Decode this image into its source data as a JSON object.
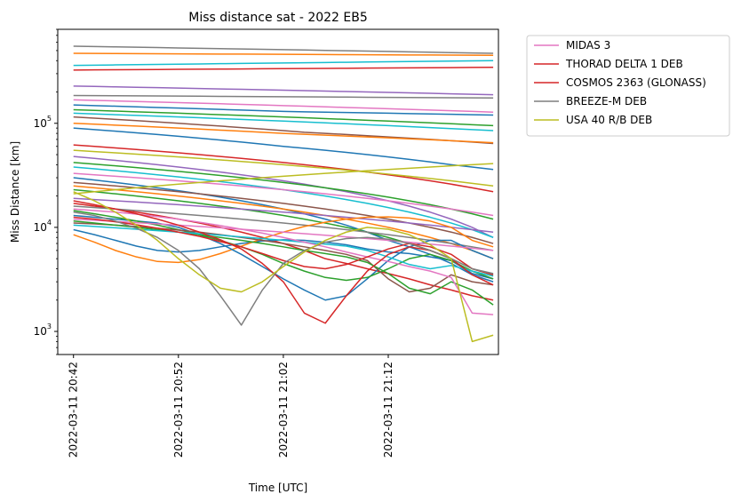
{
  "chart_data": {
    "type": "line",
    "title": "Miss distance sat - 2022 EB5",
    "xlabel": "Time [UTC]",
    "ylabel": "Miss Distance [km]",
    "yscale": "log",
    "ylim": [
      600,
      800000
    ],
    "xlim": [
      "2022-03-11 20:40:30",
      "2022-03-11 21:22:30"
    ],
    "x_ticks": [
      "2022-03-11 20:42",
      "2022-03-11 20:52",
      "2022-03-11 21:02",
      "2022-03-11 21:12"
    ],
    "y_ticks": [
      {
        "label_base": "10",
        "label_exp": "3",
        "value": 1000
      },
      {
        "label_base": "10",
        "label_exp": "4",
        "value": 10000
      },
      {
        "label_base": "10",
        "label_exp": "5",
        "value": 100000
      }
    ],
    "legend_position": "outside-upper-right",
    "x": [
      "20:42",
      "20:44",
      "20:46",
      "20:48",
      "20:50",
      "20:52",
      "20:54",
      "20:56",
      "20:58",
      "21:00",
      "21:02",
      "21:04",
      "21:06",
      "21:08",
      "21:10",
      "21:12",
      "21:14",
      "21:16",
      "21:18",
      "21:20",
      "21:22"
    ],
    "series": [
      {
        "name": "MIDAS 3",
        "color": "#e377c2",
        "values": [
          15000,
          14500,
          14000,
          13400,
          12700,
          12000,
          11200,
          10400,
          9600,
          8800,
          8000,
          7200,
          6500,
          5800,
          5200,
          4700,
          4200,
          3800,
          3300,
          1500,
          1450
        ]
      },
      {
        "name": "THORAD DELTA 1 DEB",
        "color": "#d62728",
        "values": [
          18000,
          16500,
          15000,
          13500,
          12000,
          10500,
          9000,
          7600,
          6200,
          4500,
          3000,
          1500,
          1200,
          2200,
          3800,
          5500,
          6500,
          6000,
          5000,
          3500,
          2800
        ]
      },
      {
        "name": "COSMOS 2363 (GLONASS)",
        "color": "#d62728",
        "values": [
          12500,
          12000,
          11300,
          10600,
          9800,
          9000,
          8200,
          7300,
          6500,
          5600,
          4800,
          4200,
          4000,
          4400,
          5200,
          6200,
          7000,
          6500,
          5500,
          4000,
          3500
        ]
      },
      {
        "name": "BREEZE-M DEB",
        "color": "#7f7f7f",
        "values": [
          14000,
          13000,
          11500,
          9800,
          8000,
          6000,
          4000,
          2200,
          1150,
          2500,
          4500,
          6000,
          7200,
          7800,
          8000,
          7700,
          7000,
          6000,
          5000,
          4000,
          3600
        ]
      },
      {
        "name": "USA 40 R/B DEB",
        "color": "#bcbd22",
        "values": [
          22000,
          18000,
          14000,
          10500,
          7500,
          5000,
          3500,
          2600,
          2400,
          3000,
          4200,
          5800,
          7500,
          9000,
          10000,
          9600,
          8500,
          6800,
          5000,
          800,
          920
        ]
      },
      {
        "name": "",
        "color": "#7f7f7f",
        "values": [
          550000,
          546000,
          542000,
          538000,
          534000,
          530000,
          526000,
          522000,
          518000,
          514000,
          510000,
          506000,
          502000,
          498000,
          494000,
          490000,
          486000,
          482000,
          478000,
          474000,
          470000
        ]
      },
      {
        "name": "",
        "color": "#ff7f0e",
        "values": [
          470000,
          469000,
          468000,
          467000,
          466000,
          465000,
          464000,
          463000,
          462000,
          461000,
          460000,
          459000,
          458000,
          457000,
          456000,
          455000,
          454000,
          453000,
          452000,
          451000,
          450000
        ]
      },
      {
        "name": "",
        "color": "#17becf",
        "values": [
          360000,
          362000,
          364000,
          366000,
          368000,
          370000,
          372000,
          374000,
          376000,
          378000,
          380000,
          382000,
          384000,
          386000,
          388000,
          390000,
          392000,
          394000,
          396000,
          398000,
          400000
        ]
      },
      {
        "name": "",
        "color": "#d62728",
        "values": [
          325000,
          326000,
          327000,
          328000,
          329000,
          330000,
          331000,
          332000,
          333000,
          334000,
          335000,
          336000,
          337000,
          338000,
          339000,
          340000,
          341000,
          342000,
          343000,
          344000,
          345000
        ]
      },
      {
        "name": "",
        "color": "#9467bd",
        "values": [
          228000,
          226000,
          224000,
          222000,
          220000,
          218000,
          216000,
          214000,
          212000,
          210000,
          208000,
          206000,
          204000,
          202000,
          200000,
          198000,
          196000,
          194000,
          192000,
          190000,
          188000
        ]
      },
      {
        "name": "",
        "color": "#7f7f7f",
        "values": [
          185000,
          184500,
          184000,
          183500,
          183000,
          182500,
          182000,
          181500,
          181000,
          180500,
          180000,
          179500,
          179000,
          178500,
          178000,
          177500,
          177000,
          176500,
          176000,
          175500,
          175000
        ]
      },
      {
        "name": "",
        "color": "#e377c2",
        "values": [
          168000,
          166000,
          164000,
          162000,
          160000,
          158000,
          156000,
          154000,
          152000,
          150000,
          148000,
          146000,
          144000,
          142000,
          140000,
          138000,
          136000,
          134000,
          132000,
          130000,
          128000
        ]
      },
      {
        "name": "",
        "color": "#1f77b4",
        "values": [
          150000,
          148000,
          146000,
          144000,
          142000,
          140000,
          138000,
          136000,
          134000,
          132000,
          130000,
          129000,
          128000,
          127000,
          126000,
          125000,
          124000,
          123000,
          122000,
          121000,
          120000
        ]
      },
      {
        "name": "",
        "color": "#2ca02c",
        "values": [
          135000,
          133000,
          131000,
          129000,
          127000,
          125000,
          123000,
          121000,
          119000,
          117000,
          115000,
          113000,
          111000,
          109000,
          107000,
          105000,
          103000,
          101000,
          99000,
          97000,
          95000
        ]
      },
      {
        "name": "",
        "color": "#17becf",
        "values": [
          125000,
          123000,
          121000,
          119000,
          117000,
          115000,
          113000,
          111000,
          109000,
          107000,
          105000,
          103000,
          101000,
          99000,
          97000,
          95000,
          93000,
          91000,
          89000,
          87000,
          85000
        ]
      },
      {
        "name": "",
        "color": "#8c564b",
        "values": [
          115000,
          112000,
          109000,
          106000,
          103000,
          100000,
          97000,
          94000,
          91000,
          88000,
          85000,
          82000,
          80000,
          78000,
          76000,
          74000,
          72000,
          70000,
          68000,
          66000,
          64000
        ]
      },
      {
        "name": "",
        "color": "#ff7f0e",
        "values": [
          100000,
          98000,
          96000,
          94000,
          92000,
          90000,
          88000,
          86000,
          84000,
          82000,
          80000,
          78500,
          77000,
          75500,
          74000,
          72500,
          71000,
          69500,
          68000,
          66500,
          65000
        ]
      },
      {
        "name": "",
        "color": "#1f77b4",
        "values": [
          90000,
          87000,
          84000,
          81000,
          78000,
          75000,
          72000,
          69000,
          66000,
          63000,
          60000,
          57500,
          55000,
          52500,
          50000,
          47500,
          45000,
          42500,
          40000,
          38000,
          36000
        ]
      },
      {
        "name": "",
        "color": "#d62728",
        "values": [
          62000,
          60000,
          58000,
          56000,
          54000,
          52000,
          50000,
          48000,
          46000,
          44000,
          42000,
          40000,
          38000,
          36000,
          34000,
          32000,
          30000,
          28000,
          26000,
          24000,
          22000
        ]
      },
      {
        "name": "",
        "color": "#bcbd22",
        "values": [
          55000,
          53500,
          52000,
          50500,
          49000,
          47500,
          46000,
          44500,
          43000,
          41500,
          40000,
          38500,
          37000,
          35500,
          34000,
          32500,
          31000,
          29500,
          28000,
          26500,
          25000
        ]
      },
      {
        "name": "",
        "color": "#9467bd",
        "values": [
          48000,
          46000,
          44000,
          42000,
          40000,
          38000,
          36000,
          34000,
          32000,
          30000,
          28000,
          26000,
          24000,
          22000,
          20000,
          18000,
          16000,
          14000,
          12000,
          10000,
          8000
        ]
      },
      {
        "name": "",
        "color": "#2ca02c",
        "values": [
          42000,
          40500,
          39000,
          37500,
          36000,
          34500,
          33000,
          31500,
          30000,
          28500,
          27000,
          25500,
          24000,
          22500,
          21000,
          19500,
          18000,
          16500,
          15000,
          13500,
          12000
        ]
      },
      {
        "name": "",
        "color": "#17becf",
        "values": [
          38000,
          36500,
          35000,
          33500,
          32000,
          30500,
          29000,
          27500,
          26000,
          24500,
          23000,
          21500,
          20000,
          18500,
          17000,
          15500,
          14000,
          12500,
          11000,
          9500,
          8000
        ]
      },
      {
        "name": "",
        "color": "#e377c2",
        "values": [
          33000,
          32000,
          31000,
          30000,
          29000,
          28000,
          27000,
          26000,
          25000,
          24000,
          23000,
          22000,
          21000,
          20000,
          19000,
          18000,
          17000,
          16000,
          15000,
          14000,
          13000
        ]
      },
      {
        "name": "",
        "color": "#1f77b4",
        "values": [
          30000,
          28500,
          27000,
          25500,
          24000,
          22500,
          21000,
          19500,
          18000,
          16500,
          15000,
          13500,
          12000,
          10500,
          9000,
          7500,
          6500,
          5500,
          4500,
          3500,
          3000
        ]
      },
      {
        "name": "",
        "color": "#8c564b",
        "values": [
          27000,
          26000,
          25000,
          24000,
          23000,
          22000,
          21000,
          20000,
          19000,
          18000,
          17000,
          16000,
          15000,
          14000,
          13000,
          12000,
          11000,
          10000,
          9000,
          8000,
          7000
        ]
      },
      {
        "name": "",
        "color": "#ff7f0e",
        "values": [
          25000,
          24000,
          23000,
          22000,
          21000,
          20000,
          19000,
          18000,
          17000,
          16000,
          15000,
          14000,
          13000,
          12000,
          11000,
          10000,
          9000,
          8000,
          7000,
          6000,
          5000
        ]
      },
      {
        "name": "",
        "color": "#2ca02c",
        "values": [
          23000,
          22000,
          21000,
          20000,
          19000,
          18000,
          17000,
          16000,
          15000,
          14000,
          13000,
          12000,
          11000,
          10000,
          9000,
          8000,
          7000,
          6000,
          5000,
          4000,
          3500
        ]
      },
      {
        "name": "",
        "color": "#bcbd22",
        "values": [
          21000,
          22000,
          23000,
          24000,
          25000,
          26000,
          27000,
          28000,
          29000,
          30000,
          31000,
          32000,
          33000,
          34000,
          35000,
          36000,
          37000,
          38000,
          39000,
          40000,
          41000
        ]
      },
      {
        "name": "",
        "color": "#9467bd",
        "values": [
          19000,
          18500,
          18000,
          17500,
          17000,
          16500,
          16000,
          15500,
          15000,
          14500,
          14000,
          13500,
          13000,
          12500,
          12000,
          11500,
          11000,
          10500,
          10000,
          9500,
          9000
        ]
      },
      {
        "name": "",
        "color": "#d62728",
        "values": [
          17000,
          16000,
          15000,
          14000,
          13000,
          12000,
          11000,
          10000,
          9000,
          8000,
          7000,
          6000,
          5000,
          4500,
          4000,
          3600,
          3200,
          2800,
          2500,
          2200,
          2000
        ]
      },
      {
        "name": "",
        "color": "#7f7f7f",
        "values": [
          16000,
          15500,
          15000,
          14500,
          14000,
          13500,
          13000,
          12500,
          12000,
          11500,
          11000,
          10500,
          10000,
          9500,
          9000,
          8500,
          8000,
          7500,
          7000,
          6500,
          6000
        ]
      },
      {
        "name": "",
        "color": "#1f77b4",
        "values": [
          9500,
          8500,
          7500,
          6600,
          6000,
          5800,
          6000,
          6500,
          7000,
          7400,
          7600,
          7500,
          7200,
          6800,
          6200,
          5800,
          5600,
          5200,
          4800,
          3600,
          3200
        ]
      },
      {
        "name": "",
        "color": "#ff7f0e",
        "values": [
          8500,
          7200,
          6000,
          5200,
          4700,
          4600,
          4900,
          5600,
          6600,
          7800,
          9000,
          10200,
          11200,
          12000,
          12500,
          12600,
          12300,
          11500,
          10000,
          7500,
          6500
        ]
      },
      {
        "name": "",
        "color": "#1f77b4",
        "values": [
          13000,
          12500,
          12000,
          11500,
          11000,
          10000,
          8500,
          7000,
          5500,
          4200,
          3200,
          2500,
          2000,
          2200,
          3200,
          4800,
          6500,
          7500,
          7500,
          6000,
          5000
        ]
      },
      {
        "name": "",
        "color": "#2ca02c",
        "values": [
          14500,
          13500,
          12500,
          11500,
          10500,
          9500,
          8500,
          7500,
          6500,
          5500,
          4500,
          3800,
          3300,
          3100,
          3300,
          4000,
          5000,
          5500,
          4800,
          3800,
          3200
        ]
      },
      {
        "name": "",
        "color": "#8c564b",
        "values": [
          11000,
          10800,
          10500,
          10200,
          9800,
          9400,
          9000,
          8500,
          8000,
          7500,
          7000,
          6500,
          6000,
          5500,
          4800,
          3200,
          2400,
          2600,
          3500,
          3000,
          2800
        ]
      },
      {
        "name": "",
        "color": "#2ca02c",
        "values": [
          11500,
          11000,
          10500,
          10000,
          9500,
          9000,
          8500,
          8000,
          7500,
          7000,
          6500,
          6000,
          5600,
          5200,
          4600,
          3600,
          2600,
          2300,
          3000,
          2500,
          1800
        ]
      },
      {
        "name": "",
        "color": "#17becf",
        "values": [
          10500,
          10200,
          9900,
          9600,
          9300,
          9000,
          8700,
          8400,
          8100,
          7800,
          7500,
          7200,
          6900,
          6600,
          6000,
          5200,
          4400,
          4000,
          4300,
          3800,
          3400
        ]
      },
      {
        "name": "",
        "color": "#e377c2",
        "values": [
          12000,
          11700,
          11400,
          11100,
          10800,
          10500,
          10200,
          9900,
          9600,
          9300,
          9000,
          8700,
          8400,
          8100,
          7800,
          7500,
          7200,
          6900,
          6600,
          6300,
          6000
        ]
      }
    ]
  }
}
